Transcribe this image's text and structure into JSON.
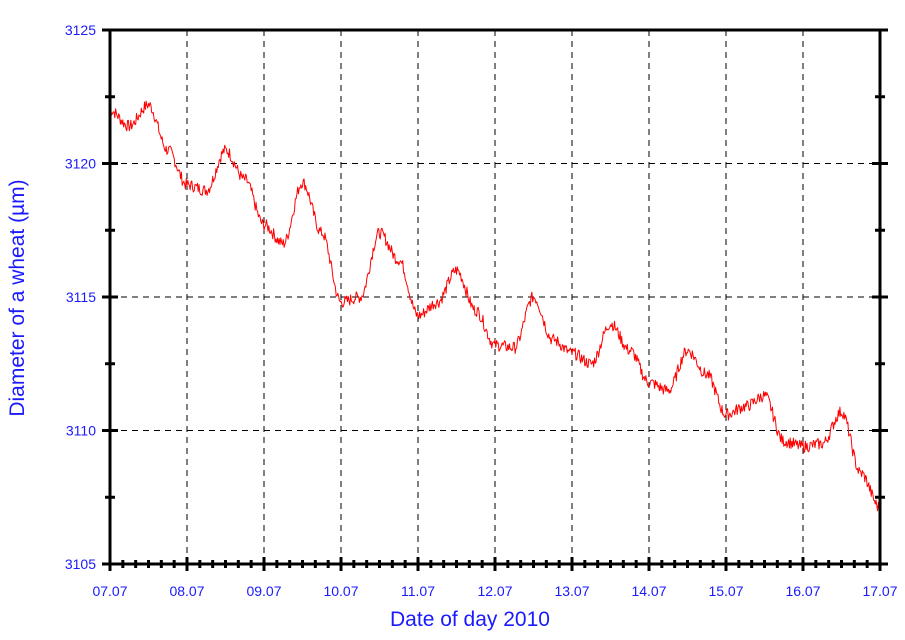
{
  "chart_data": {
    "type": "line",
    "xlabel": "Date of day 2010",
    "ylabel": "Diameter of a wheat (µm)",
    "x_tick_labels": [
      "07.07",
      "08.07",
      "09.07",
      "10.07",
      "11.07",
      "12.07",
      "13.07",
      "14.07",
      "15.07",
      "16.07",
      "17.07"
    ],
    "y_tick_labels": [
      "3105",
      "3110",
      "3115",
      "3120",
      "3125"
    ],
    "xlim": [
      "07.07",
      "17.07"
    ],
    "ylim": [
      3105,
      3125
    ],
    "grid": true,
    "line_color": "#ff0000",
    "series": [
      {
        "x": [
          "07.07 00:00",
          "07.07 06:00",
          "07.07 12:00",
          "07.07 18:00",
          "08.07 00:00",
          "08.07 06:00",
          "08.07 12:00",
          "08.07 18:00",
          "09.07 00:00",
          "09.07 06:00",
          "09.07 12:00",
          "09.07 18:00",
          "10.07 00:00",
          "10.07 06:00",
          "10.07 12:00",
          "10.07 18:00",
          "11.07 00:00",
          "11.07 06:00",
          "11.07 12:00",
          "11.07 18:00",
          "12.07 00:00",
          "12.07 06:00",
          "12.07 12:00",
          "12.07 18:00",
          "13.07 00:00",
          "13.07 06:00",
          "13.07 12:00",
          "13.07 18:00",
          "14.07 00:00",
          "14.07 06:00",
          "14.07 12:00",
          "14.07 18:00",
          "15.07 00:00",
          "15.07 06:00",
          "15.07 12:00",
          "15.07 18:00",
          "16.07 00:00",
          "16.07 06:00",
          "16.07 12:00",
          "16.07 18:00",
          "17.07 00:00"
        ],
        "values": [
          3122.0,
          3121.4,
          3122.2,
          3120.5,
          3119.2,
          3119.0,
          3120.5,
          3119.4,
          3117.7,
          3117.0,
          3119.3,
          3117.4,
          3114.8,
          3115.0,
          3117.4,
          3116.4,
          3114.3,
          3114.8,
          3116.0,
          3114.5,
          3113.2,
          3113.1,
          3115.0,
          3113.4,
          3112.9,
          3112.5,
          3114.0,
          3113.0,
          3111.8,
          3111.5,
          3113.0,
          3112.1,
          3110.6,
          3110.9,
          3111.3,
          3109.6,
          3109.4,
          3109.5,
          3110.7,
          3108.4,
          3107.1
        ]
      }
    ]
  }
}
